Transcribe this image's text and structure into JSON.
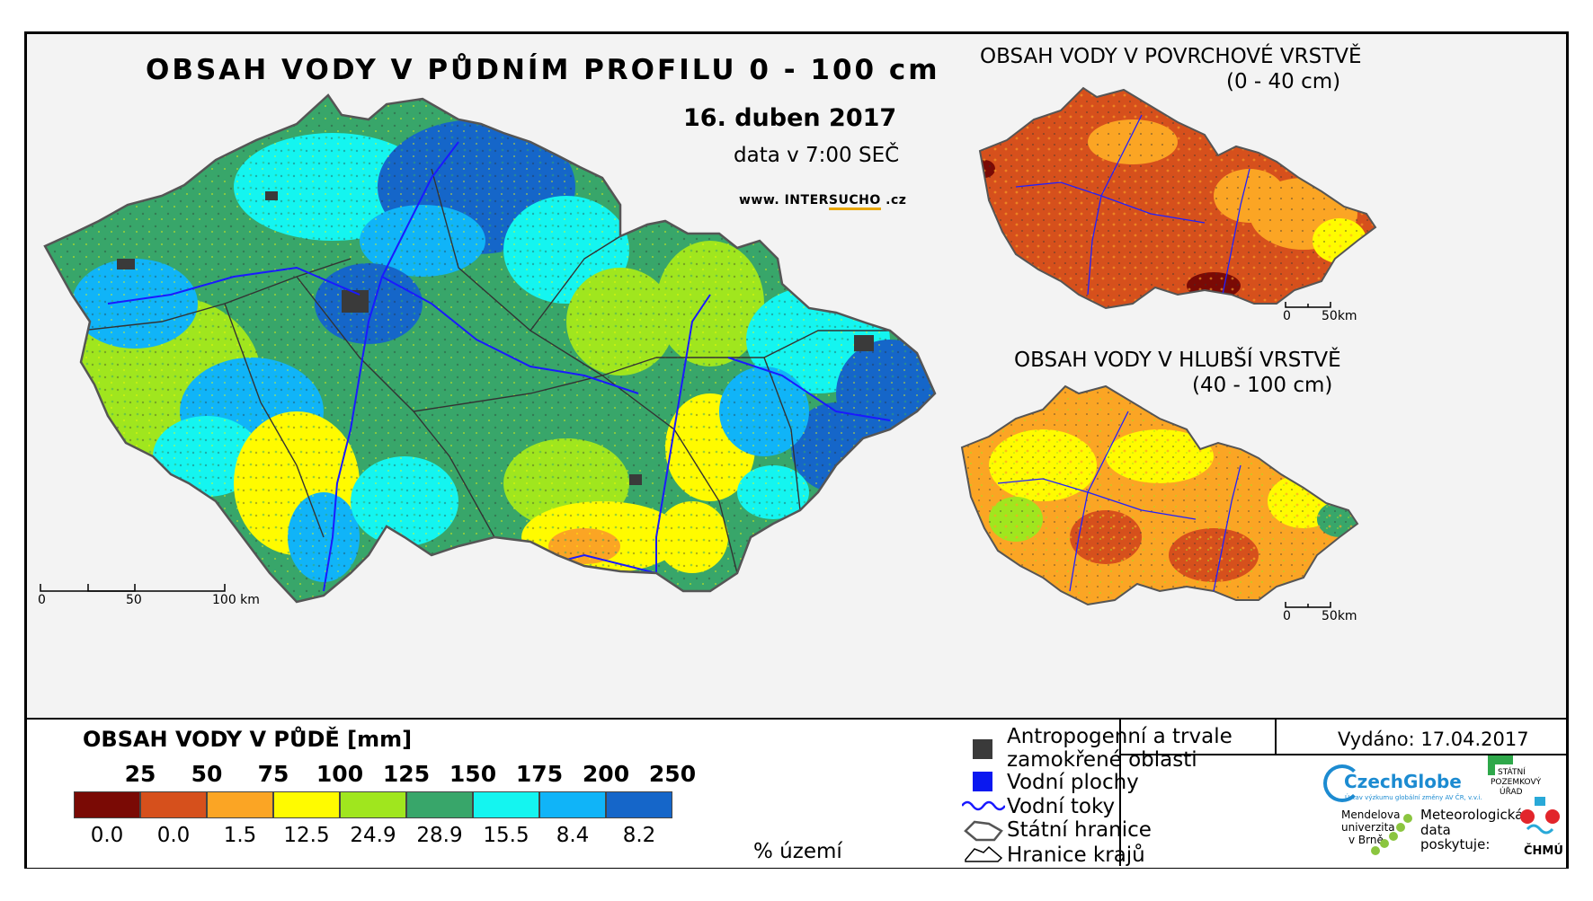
{
  "main_map": {
    "title": "OBSAH VODY V PŮDNÍM PROFILU 0 - 100 cm",
    "date": "16. duben 2017",
    "time": "data v 7:00 SEČ",
    "site_prefix": "www. INTER",
    "site_highlight": "SUCHO",
    "site_suffix": " .cz",
    "scale": {
      "zero": "0",
      "mid": "50",
      "end": "100 km"
    }
  },
  "surface_map": {
    "title": "OBSAH VODY V POVRCHOVÉ VRSTVĚ",
    "range": "(0 - 40 cm)",
    "scale": {
      "zero": "0",
      "end": "50km"
    }
  },
  "deep_map": {
    "title": "OBSAH VODY V HLUBŠÍ VRSTVĚ",
    "range": "(40 - 100 cm)",
    "scale": {
      "zero": "0",
      "end": "50km"
    }
  },
  "legend": {
    "title": "OBSAH VODY V PŮDĚ [mm]",
    "unit": "% území",
    "breaks": [
      "25",
      "50",
      "75",
      "100",
      "125",
      "150",
      "175",
      "200",
      "250"
    ],
    "percentages": [
      "0.0",
      "0.0",
      "1.5",
      "12.5",
      "24.9",
      "28.9",
      "15.5",
      "8.4",
      "8.2"
    ],
    "colors": [
      "#7a0a05",
      "#d6501c",
      "#fba524",
      "#fffb00",
      "#a0e61e",
      "#38a66a",
      "#14f5f0",
      "#10b4f8",
      "#1566c9"
    ]
  },
  "symbols": {
    "anthro_1": "Antropogenní a trvale",
    "anthro_2": "zamokřené oblasti",
    "water_bodies": "Vodní plochy",
    "rivers": "Vodní toky",
    "borders": "Státní hranice",
    "regions": "Hranice krajů"
  },
  "footer": {
    "issued": "Vydáno: 17.04.2017",
    "czechglobe": "CzechGlobe",
    "czechglobe_sub": "Ústav výzkumu globální změny AV ČR, v.v.i.",
    "mendel_1": "Mendelova",
    "mendel_2": "univerzita",
    "mendel_3": "v Brně",
    "spu_1": "STÁTNÍ",
    "spu_2": "POZEMKOVÝ",
    "spu_3": "ÚŘAD",
    "provides_1": "Meteorologická",
    "provides_2": "data",
    "provides_3": "poskytuje:",
    "chmu": "ČHMÚ"
  }
}
